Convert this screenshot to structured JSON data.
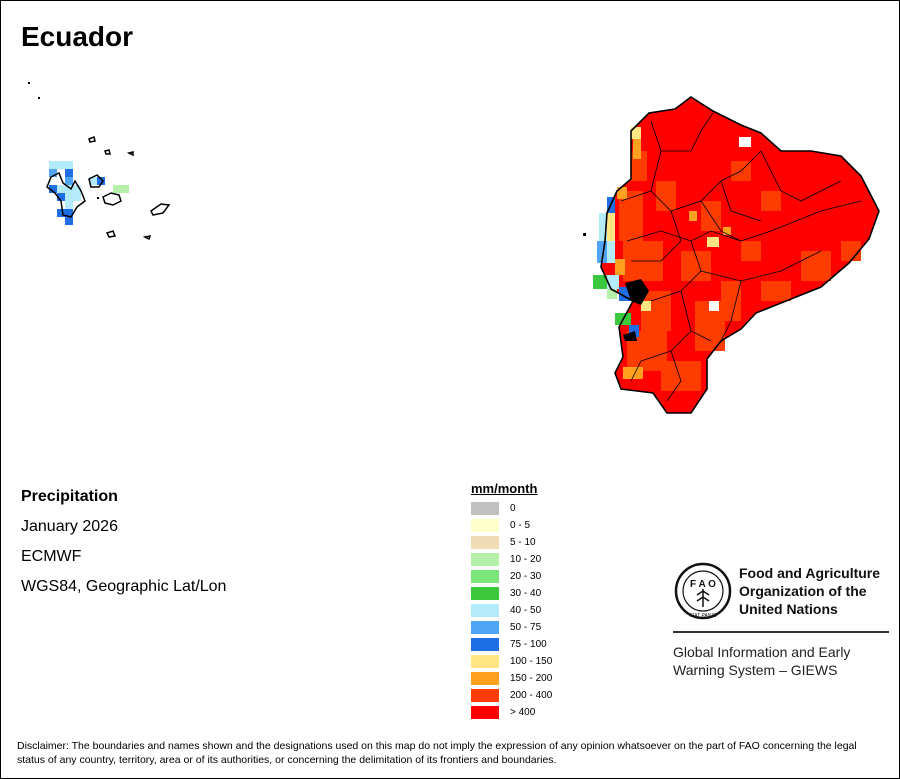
{
  "map": {
    "title": "Ecuador",
    "product": "Precipitation",
    "period": "January 2026",
    "source": "ECMWF",
    "projection": "WGS84, Geographic Lat/Lon"
  },
  "legend": {
    "unit": "mm/month",
    "classes": [
      {
        "label": "0",
        "color": "#c0c0c0"
      },
      {
        "label": "0 - 5",
        "color": "#ffffcc"
      },
      {
        "label": "5 - 10",
        "color": "#f0dcb4"
      },
      {
        "label": "10 - 20",
        "color": "#b4f0a8"
      },
      {
        "label": "20 - 30",
        "color": "#78e678"
      },
      {
        "label": "30 - 40",
        "color": "#3cc83c"
      },
      {
        "label": "40 - 50",
        "color": "#b4ebfa"
      },
      {
        "label": "50 - 75",
        "color": "#50a5f5"
      },
      {
        "label": "75 - 100",
        "color": "#1e6ee6"
      },
      {
        "label": "100 - 150",
        "color": "#ffe682"
      },
      {
        "label": "150 - 200",
        "color": "#ffa01e"
      },
      {
        "label": "200 - 400",
        "color": "#ff3c00"
      },
      {
        "label": "> 400",
        "color": "#ff0000"
      }
    ]
  },
  "branding": {
    "org_line1": "Food and Agriculture",
    "org_line2": "Organization of the",
    "org_line3": "United Nations",
    "emblem_text": "FIAT PANIS",
    "system_line1": "Global Information and Early",
    "system_line2": "Warning System – GIEWS"
  },
  "disclaimer": "Disclaimer: The boundaries and names shown and the designations used on this map do not imply the expression of any opinion whatsoever on the part of FAO concerning the legal status of any country, territory, area or of its authorities, or concerning the delimitation of its frontiers and boundaries."
}
